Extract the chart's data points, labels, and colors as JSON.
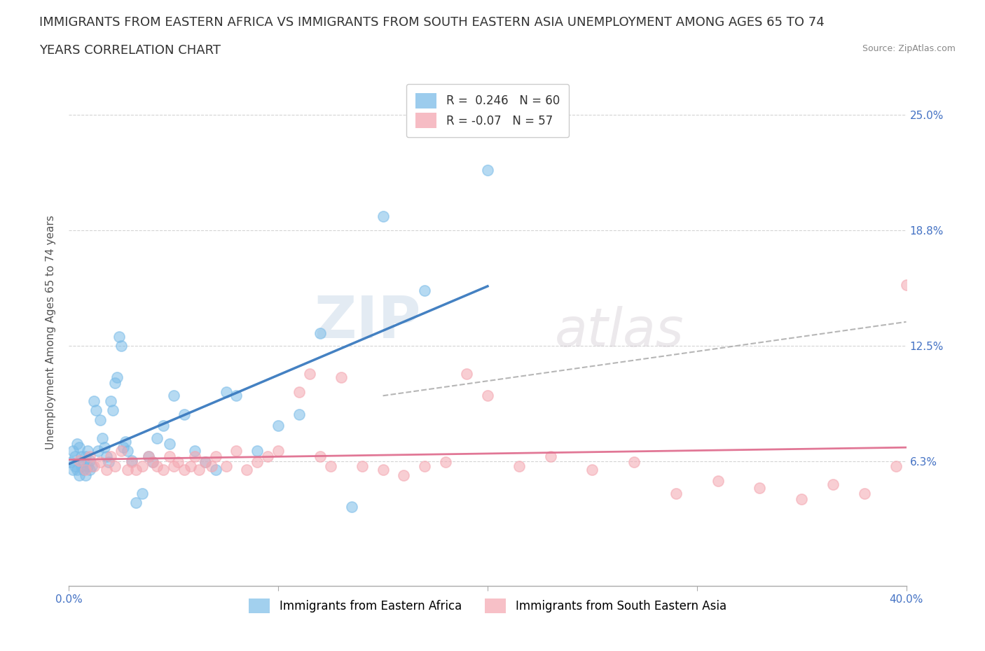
{
  "title_line1": "IMMIGRANTS FROM EASTERN AFRICA VS IMMIGRANTS FROM SOUTH EASTERN ASIA UNEMPLOYMENT AMONG AGES 65 TO 74",
  "title_line2": "YEARS CORRELATION CHART",
  "source": "Source: ZipAtlas.com",
  "ylabel": "Unemployment Among Ages 65 to 74 years",
  "xlim": [
    0.0,
    0.4
  ],
  "ylim": [
    -0.005,
    0.27
  ],
  "ytick_values": [
    0.0625,
    0.125,
    0.1875,
    0.25
  ],
  "ytick_labels": [
    "6.3%",
    "12.5%",
    "18.8%",
    "25.0%"
  ],
  "series1_label": "Immigrants from Eastern Africa",
  "series1_color": "#7bbce8",
  "series1_R": 0.246,
  "series1_N": 60,
  "series2_label": "Immigrants from South Eastern Asia",
  "series2_color": "#f4a6b0",
  "series2_R": -0.07,
  "series2_N": 57,
  "watermark_text": "ZIPatlas",
  "background_color": "#ffffff",
  "grid_color": "#d0d0d0",
  "title_fontsize": 13,
  "axis_label_fontsize": 11,
  "tick_fontsize": 11,
  "legend_fontsize": 12,
  "scatter1_x": [
    0.001,
    0.002,
    0.002,
    0.003,
    0.003,
    0.004,
    0.004,
    0.005,
    0.005,
    0.006,
    0.006,
    0.007,
    0.007,
    0.008,
    0.008,
    0.009,
    0.009,
    0.01,
    0.01,
    0.011,
    0.012,
    0.013,
    0.014,
    0.015,
    0.016,
    0.017,
    0.018,
    0.019,
    0.02,
    0.021,
    0.022,
    0.023,
    0.024,
    0.025,
    0.026,
    0.027,
    0.028,
    0.03,
    0.032,
    0.035,
    0.038,
    0.04,
    0.042,
    0.045,
    0.048,
    0.05,
    0.055,
    0.06,
    0.065,
    0.07,
    0.075,
    0.08,
    0.09,
    0.1,
    0.11,
    0.12,
    0.135,
    0.15,
    0.17,
    0.2
  ],
  "scatter1_y": [
    0.062,
    0.068,
    0.058,
    0.065,
    0.06,
    0.058,
    0.072,
    0.055,
    0.07,
    0.06,
    0.065,
    0.062,
    0.058,
    0.055,
    0.065,
    0.06,
    0.068,
    0.063,
    0.058,
    0.06,
    0.095,
    0.09,
    0.068,
    0.085,
    0.075,
    0.07,
    0.065,
    0.062,
    0.095,
    0.09,
    0.105,
    0.108,
    0.13,
    0.125,
    0.07,
    0.073,
    0.068,
    0.063,
    0.04,
    0.045,
    0.065,
    0.062,
    0.075,
    0.082,
    0.072,
    0.098,
    0.088,
    0.068,
    0.062,
    0.058,
    0.1,
    0.098,
    0.068,
    0.082,
    0.088,
    0.132,
    0.038,
    0.195,
    0.155,
    0.22
  ],
  "scatter2_x": [
    0.005,
    0.008,
    0.01,
    0.012,
    0.015,
    0.018,
    0.02,
    0.022,
    0.025,
    0.028,
    0.03,
    0.032,
    0.035,
    0.038,
    0.04,
    0.042,
    0.045,
    0.048,
    0.05,
    0.052,
    0.055,
    0.058,
    0.06,
    0.062,
    0.065,
    0.068,
    0.07,
    0.075,
    0.08,
    0.085,
    0.09,
    0.095,
    0.1,
    0.11,
    0.115,
    0.12,
    0.125,
    0.13,
    0.14,
    0.15,
    0.16,
    0.17,
    0.18,
    0.19,
    0.2,
    0.215,
    0.23,
    0.25,
    0.27,
    0.29,
    0.31,
    0.33,
    0.35,
    0.365,
    0.38,
    0.395,
    0.4
  ],
  "scatter2_y": [
    0.063,
    0.058,
    0.065,
    0.06,
    0.062,
    0.058,
    0.065,
    0.06,
    0.068,
    0.058,
    0.062,
    0.058,
    0.06,
    0.065,
    0.062,
    0.06,
    0.058,
    0.065,
    0.06,
    0.062,
    0.058,
    0.06,
    0.065,
    0.058,
    0.062,
    0.06,
    0.065,
    0.06,
    0.068,
    0.058,
    0.062,
    0.065,
    0.068,
    0.1,
    0.11,
    0.065,
    0.06,
    0.108,
    0.06,
    0.058,
    0.055,
    0.06,
    0.062,
    0.11,
    0.098,
    0.06,
    0.065,
    0.058,
    0.062,
    0.045,
    0.052,
    0.048,
    0.042,
    0.05,
    0.045,
    0.06,
    0.158
  ]
}
